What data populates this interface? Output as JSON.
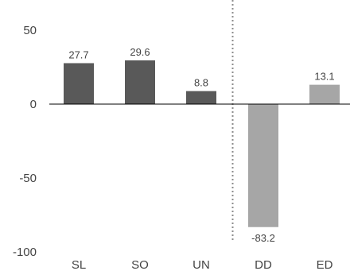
{
  "chart_data": {
    "type": "bar",
    "categories": [
      "SL",
      "SO",
      "UN",
      "DD",
      "ED"
    ],
    "values": [
      27.7,
      29.6,
      8.8,
      -83.2,
      13.1
    ],
    "data_labels": [
      "27.7",
      "29.6",
      "8.8",
      "-83.2",
      "13.1"
    ],
    "ylim": [
      -100,
      50
    ],
    "yticks": [
      "50",
      "0",
      "-50",
      "-100"
    ],
    "ytick_values": [
      50,
      0,
      -50,
      -100
    ],
    "grid": false,
    "legend": "none",
    "separator": "dotted vertical line between UN and DD",
    "colors": {
      "group1": "#595959",
      "group2": "#a6a6a6",
      "axis": "#000000",
      "separator": "#8c8c8c"
    },
    "bar_groups": [
      1,
      1,
      1,
      2,
      2
    ]
  }
}
